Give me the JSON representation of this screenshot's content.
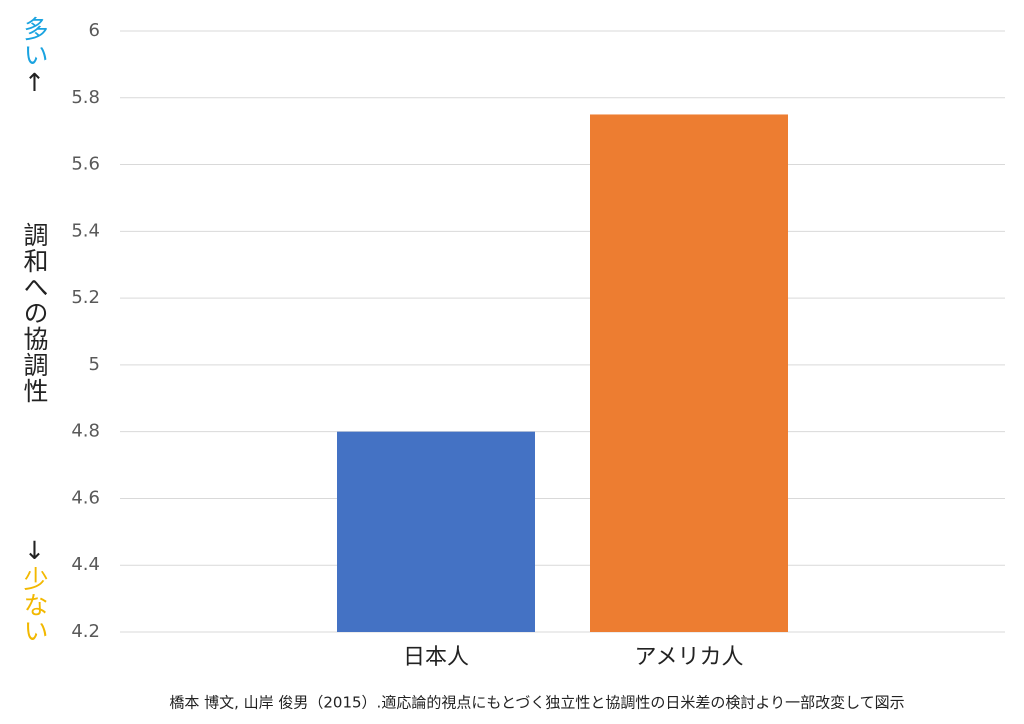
{
  "chart_data": {
    "type": "bar",
    "y_label_top": "多い",
    "y_label_top_arrow": "↑",
    "y_label_top_color": "#1aa3e0",
    "y_label": "調和への協調性",
    "y_label_bottom_arrow": "↓",
    "y_label_bottom": "少ない",
    "y_label_bottom_color": "#f2b800",
    "categories": [
      "日本人",
      "アメリカ人"
    ],
    "values": [
      4.8,
      5.75
    ],
    "colors": [
      "#4472c4",
      "#ed7d31"
    ],
    "ylim": [
      4.2,
      6
    ],
    "yticks": [
      4.2,
      4.4,
      4.6,
      4.8,
      5,
      5.2,
      5.4,
      5.6,
      5.8,
      6
    ],
    "grid": true,
    "source": "橋本 博文, 山岸 俊男（2015）.適応論的視点にもとづく独立性と協調性の日米差の検討より一部改変して図示"
  }
}
